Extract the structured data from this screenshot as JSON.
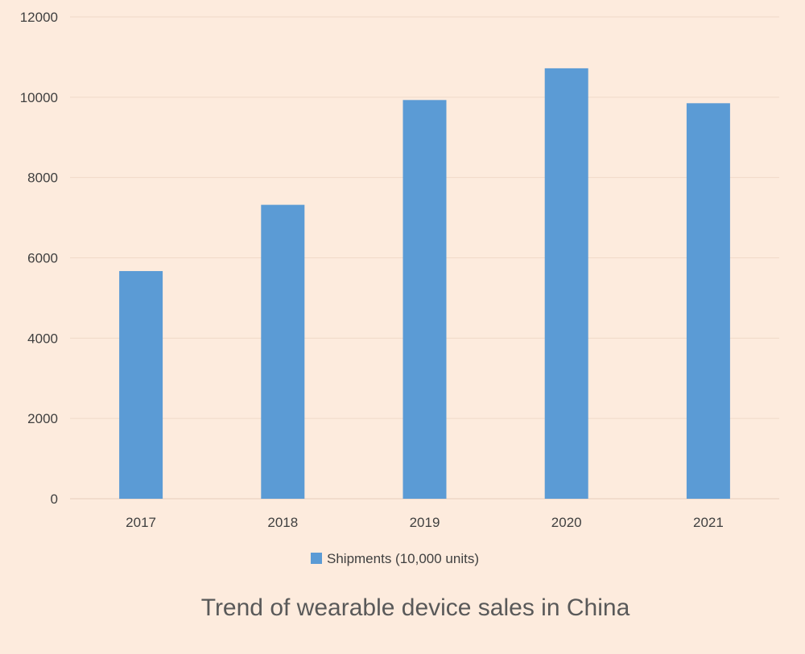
{
  "chart_data": {
    "type": "bar",
    "title": "Trend of wearable device sales in China",
    "xlabel": "",
    "ylabel": "",
    "categories": [
      "2017",
      "2018",
      "2019",
      "2020",
      "2021"
    ],
    "series": [
      {
        "name": "Shipments (10,000 units)",
        "values": [
          5670,
          7320,
          9930,
          10720,
          9850
        ],
        "color": "#5B9BD5"
      }
    ],
    "ylim": [
      0,
      12000
    ],
    "yticks": [
      "0",
      "2000",
      "4000",
      "6000",
      "8000",
      "10000",
      "12000"
    ],
    "grid": true,
    "legend_position": "bottom"
  },
  "colors": {
    "background": "#FDEBDD",
    "grid": "#F0D9C8",
    "text": "#404040",
    "title": "#595959"
  }
}
